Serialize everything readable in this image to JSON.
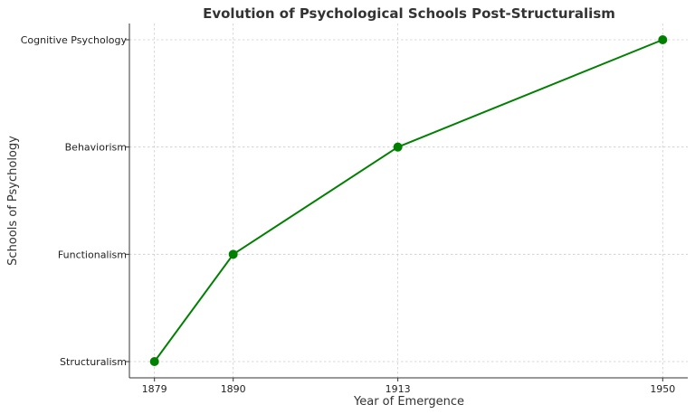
{
  "chart_data": {
    "type": "line",
    "title": "Evolution of Psychological Schools Post-Structuralism",
    "xlabel": "Year of Emergence",
    "ylabel": "Schools of Psychology",
    "x": [
      1879,
      1890,
      1913,
      1950
    ],
    "x_ticks": [
      "1879",
      "1890",
      "1913",
      "1950"
    ],
    "categories": [
      "Structuralism",
      "Functionalism",
      "Behaviorism",
      "Cognitive Psychology"
    ],
    "series": [
      {
        "x": [
          1879,
          1890,
          1913,
          1950
        ],
        "y": [
          "Structuralism",
          "Functionalism",
          "Behaviorism",
          "Cognitive Psychology"
        ],
        "color": "#008000",
        "marker": "circle"
      }
    ],
    "xlim": [
      1875.5,
      1953.5
    ],
    "grid": true
  }
}
